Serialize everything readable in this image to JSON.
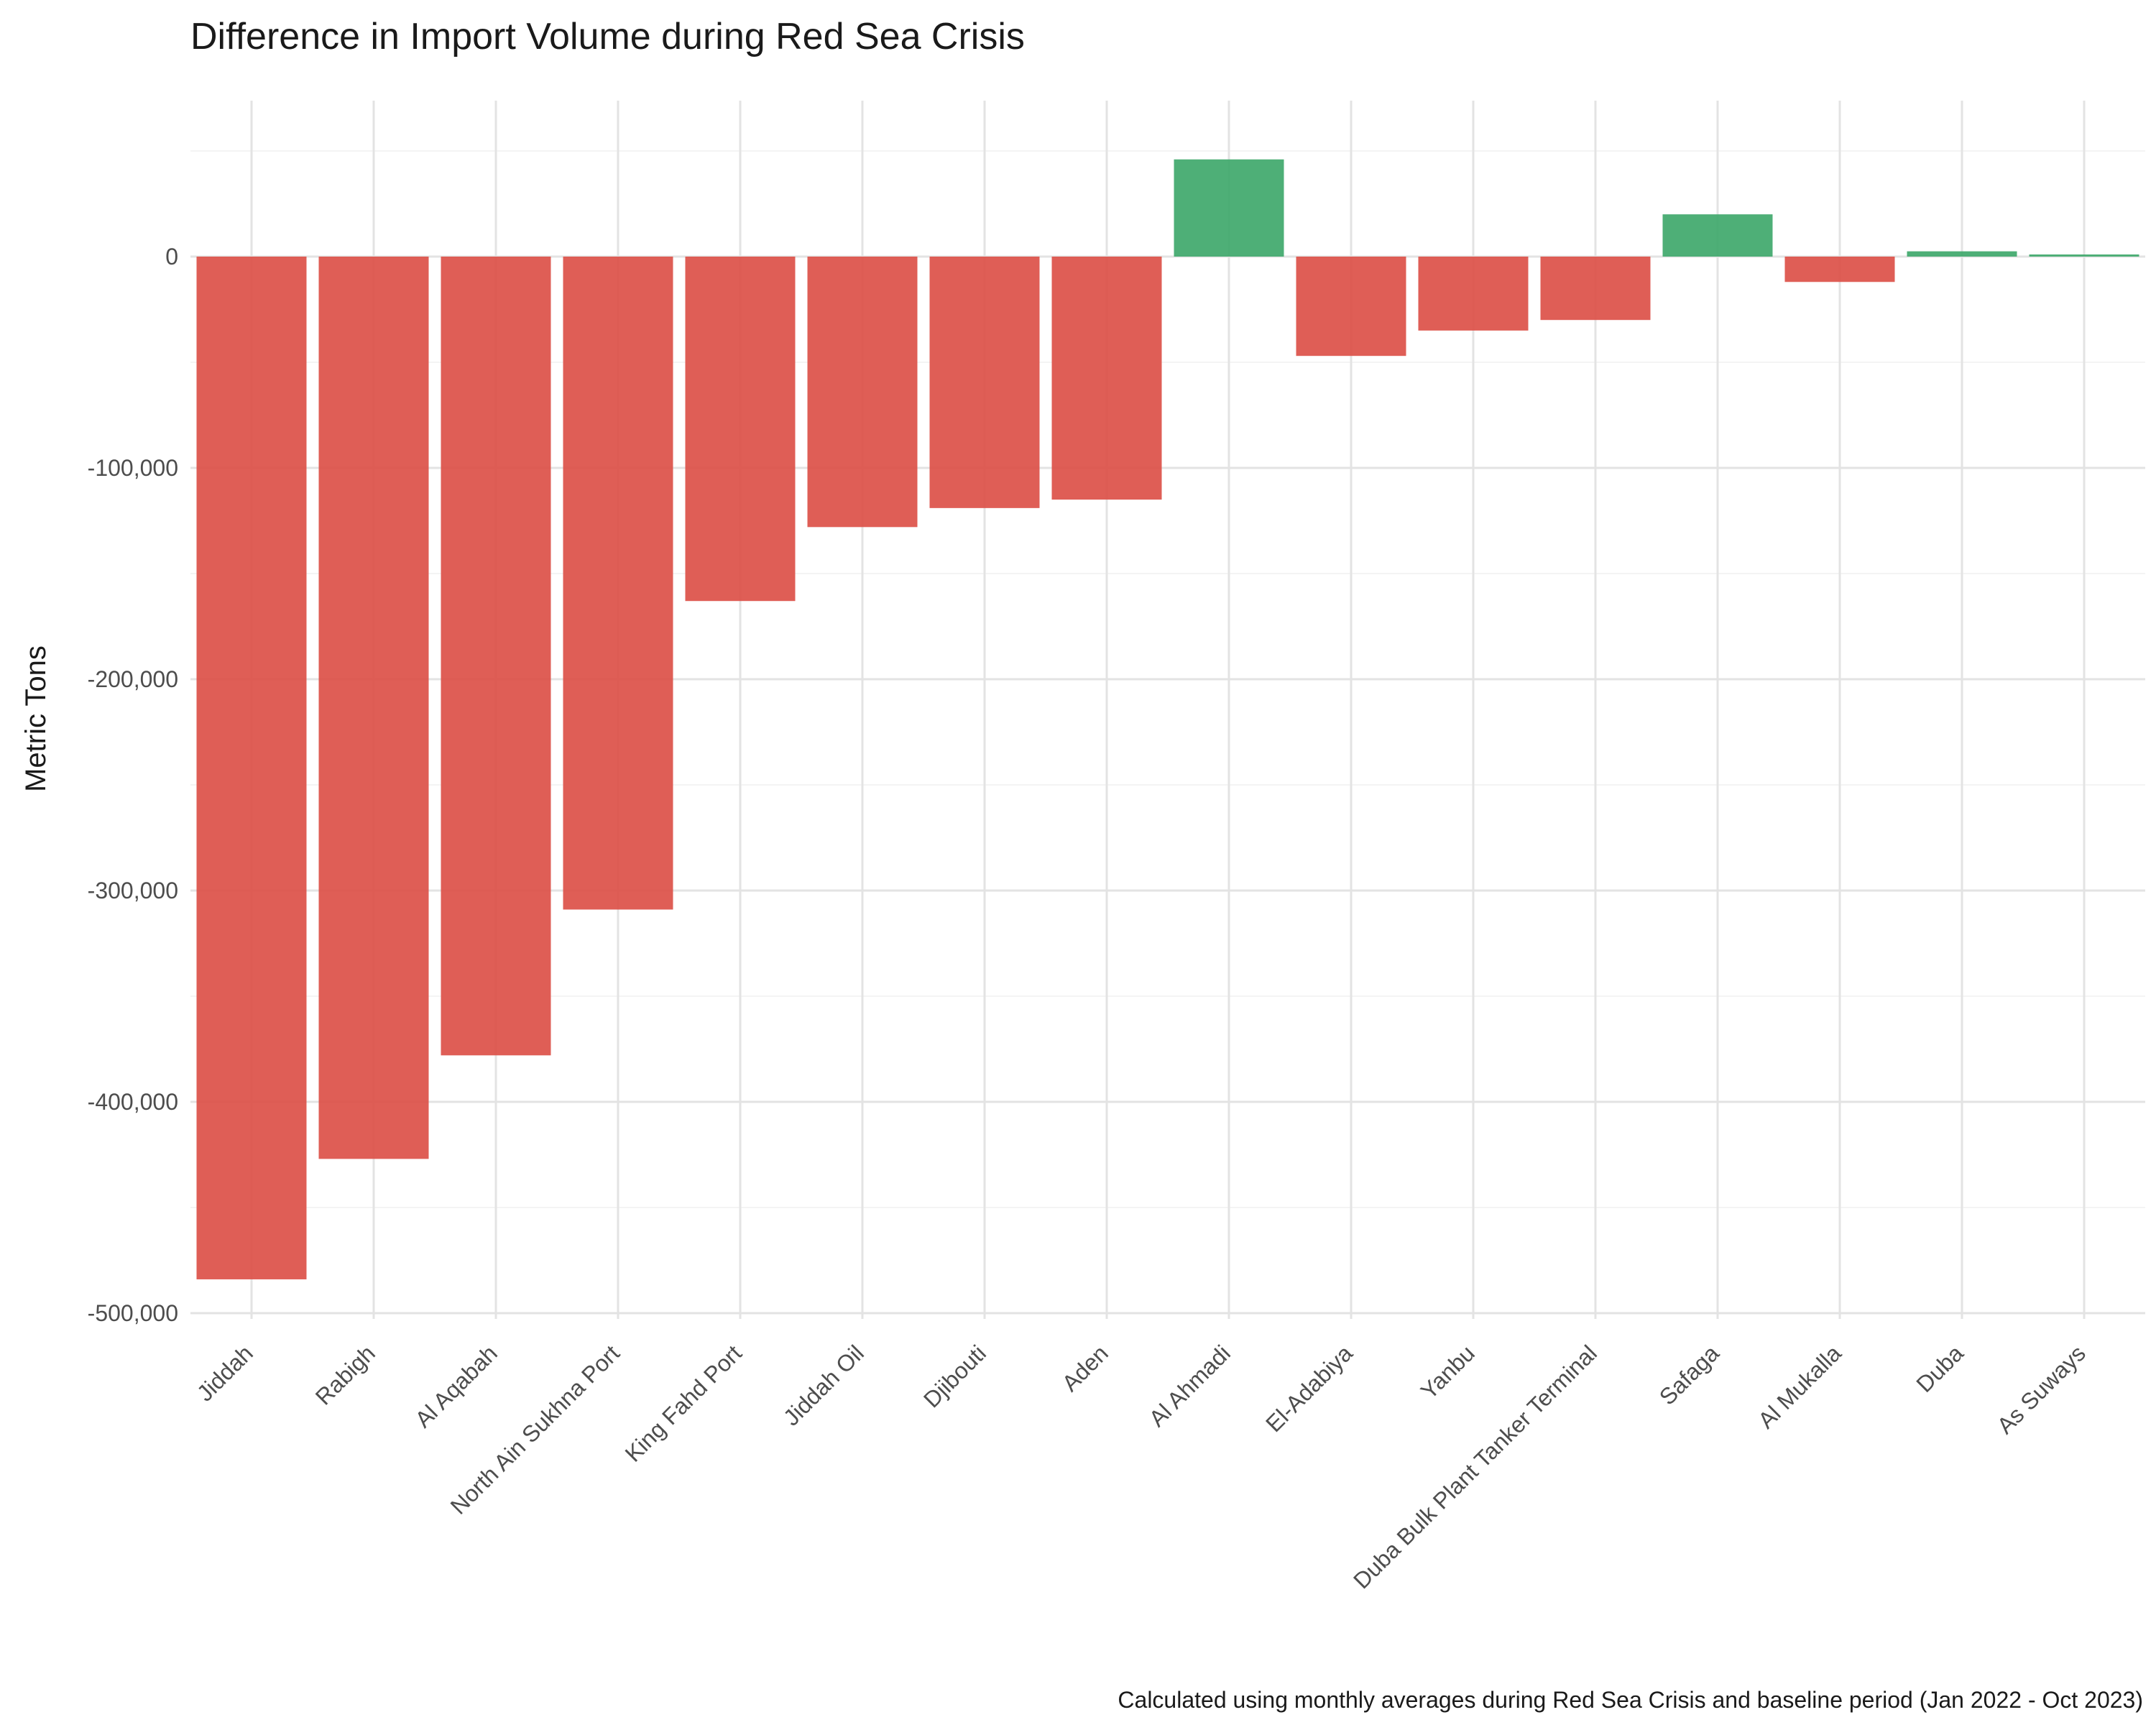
{
  "chart_data": {
    "type": "bar",
    "title": "Difference in Import Volume during Red Sea Crisis",
    "xlabel": "",
    "ylabel": "Metric Tons",
    "caption": "Calculated using monthly averages during Red Sea Crisis and baseline period (Jan 2022 - Oct 2023)",
    "categories": [
      "Jiddah",
      "Rabigh",
      "Al Aqabah",
      "North Ain Sukhna Port",
      "King Fahd Port",
      "Jiddah Oil",
      "Djibouti",
      "Aden",
      "Al Ahmadi",
      "El-Adabiya",
      "Yanbu",
      "Duba Bulk Plant Tanker Terminal",
      "Safaga",
      "Al Mukalla",
      "Duba",
      "As Suways"
    ],
    "values": [
      -484000,
      -427000,
      -378000,
      -309000,
      -163000,
      -128000,
      -119000,
      -115000,
      46000,
      -47000,
      -35000,
      -30000,
      20000,
      -12000,
      2500,
      1000
    ],
    "ylim": [
      -500000,
      50000
    ],
    "yticks": [
      0,
      -100000,
      -200000,
      -300000,
      -400000,
      -500000
    ],
    "ytick_labels": [
      "0",
      "-100,000",
      "-200,000",
      "-300,000",
      "-400,000",
      "-500,000"
    ],
    "colors": {
      "negative": "#dc5048",
      "positive": "#3fa86b"
    },
    "grid": true,
    "legend": "none"
  }
}
